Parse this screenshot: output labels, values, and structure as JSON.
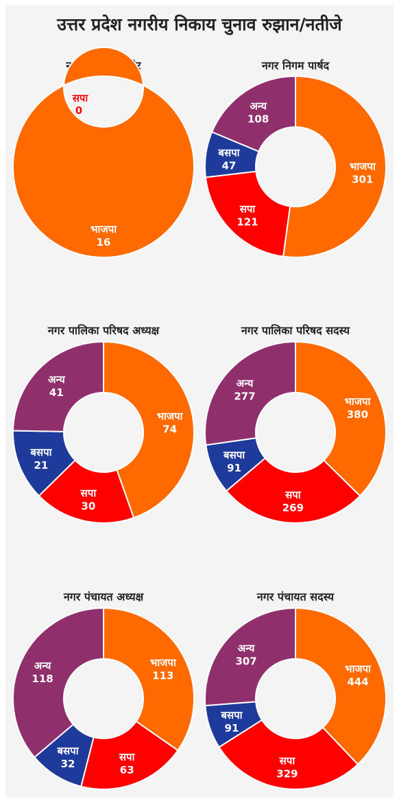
{
  "title": "उत्तर प्रदेश नगरीय निकाय चुनाव रुझान/नतीजे",
  "colors": {
    "भाजपा": "#ff6a00",
    "सपा": "#ff0000",
    "बसपा": "#1e3a9a",
    "अन्य": "#8f2f6b"
  },
  "chart_data": [
    {
      "type": "pie",
      "title": "नगर निगम महापौर",
      "slices": [
        {
          "label": "भाजपा",
          "value": 16
        },
        {
          "label": "सपा",
          "value": 0
        }
      ]
    },
    {
      "type": "pie",
      "title": "नगर निगम पार्षद",
      "slices": [
        {
          "label": "भाजपा",
          "value": 301
        },
        {
          "label": "सपा",
          "value": 121
        },
        {
          "label": "बसपा",
          "value": 47
        },
        {
          "label": "अन्य",
          "value": 108
        }
      ]
    },
    {
      "type": "pie",
      "title": "नगर पालिका परिषद अध्यक्ष",
      "slices": [
        {
          "label": "भाजपा",
          "value": 74
        },
        {
          "label": "सपा",
          "value": 30
        },
        {
          "label": "बसपा",
          "value": 21
        },
        {
          "label": "अन्य",
          "value": 41
        }
      ]
    },
    {
      "type": "pie",
      "title": "नगर पालिका परिषद सदस्य",
      "slices": [
        {
          "label": "भाजपा",
          "value": 380
        },
        {
          "label": "सपा",
          "value": 269
        },
        {
          "label": "बसपा",
          "value": 91
        },
        {
          "label": "अन्य",
          "value": 277
        }
      ]
    },
    {
      "type": "pie",
      "title": "नगर पंचायत अध्यक्ष",
      "slices": [
        {
          "label": "भाजपा",
          "value": 113
        },
        {
          "label": "सपा",
          "value": 63
        },
        {
          "label": "बसपा",
          "value": 32
        },
        {
          "label": "अन्य",
          "value": 118
        }
      ]
    },
    {
      "type": "pie",
      "title": "नगर पंचायत सदस्य",
      "slices": [
        {
          "label": "भाजपा",
          "value": 444
        },
        {
          "label": "सपा",
          "value": 329
        },
        {
          "label": "बसपा",
          "value": 91
        },
        {
          "label": "अन्य",
          "value": 307
        }
      ]
    }
  ]
}
